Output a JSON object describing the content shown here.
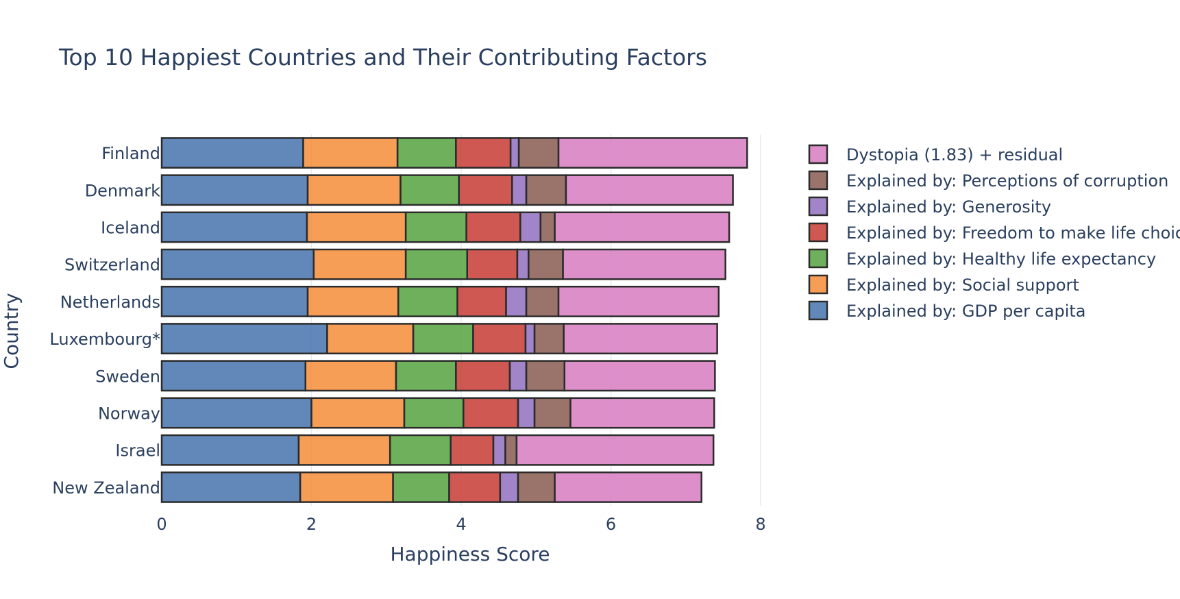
{
  "chart_data": {
    "type": "bar",
    "orientation": "horizontal",
    "stacked": true,
    "title": "Top 10 Happiest Countries and Their Contributing Factors",
    "xlabel": "Happiness Score",
    "ylabel": "Country",
    "xlim": [
      0,
      8
    ],
    "xticks": [
      "0",
      "2",
      "4",
      "6",
      "8"
    ],
    "grid": true,
    "legend_position": "right",
    "categories": [
      "Finland",
      "Denmark",
      "Iceland",
      "Switzerland",
      "Netherlands",
      "Luxembourg*",
      "Sweden",
      "Norway",
      "Israel",
      "New Zealand"
    ],
    "series": [
      {
        "name": "Explained by: GDP per capita",
        "color": "#4c78b0",
        "values": [
          1.89,
          1.95,
          1.94,
          2.03,
          1.95,
          2.21,
          1.92,
          2.0,
          1.83,
          1.85
        ]
      },
      {
        "name": "Explained by: Social support",
        "color": "#f58f3f",
        "values": [
          1.26,
          1.24,
          1.32,
          1.23,
          1.21,
          1.15,
          1.21,
          1.24,
          1.22,
          1.24
        ]
      },
      {
        "name": "Explained by: Healthy life expectancy",
        "color": "#5aa545",
        "values": [
          0.78,
          0.78,
          0.81,
          0.82,
          0.79,
          0.8,
          0.8,
          0.79,
          0.81,
          0.75
        ]
      },
      {
        "name": "Explained by: Freedom to make life choices",
        "color": "#c9413b",
        "values": [
          0.73,
          0.71,
          0.72,
          0.67,
          0.65,
          0.7,
          0.72,
          0.73,
          0.57,
          0.68
        ]
      },
      {
        "name": "Explained by: Generosity",
        "color": "#9474c0",
        "values": [
          0.11,
          0.19,
          0.27,
          0.15,
          0.27,
          0.12,
          0.22,
          0.22,
          0.16,
          0.24
        ]
      },
      {
        "name": "Explained by: Perceptions of corruption",
        "color": "#8c6155",
        "values": [
          0.53,
          0.53,
          0.19,
          0.46,
          0.43,
          0.39,
          0.51,
          0.48,
          0.15,
          0.49
        ]
      },
      {
        "name": "Dystopia (1.83) + residual",
        "color": "#d880c2",
        "values": [
          2.52,
          2.23,
          2.33,
          2.17,
          2.14,
          2.05,
          2.01,
          1.92,
          2.63,
          1.96
        ]
      }
    ]
  }
}
